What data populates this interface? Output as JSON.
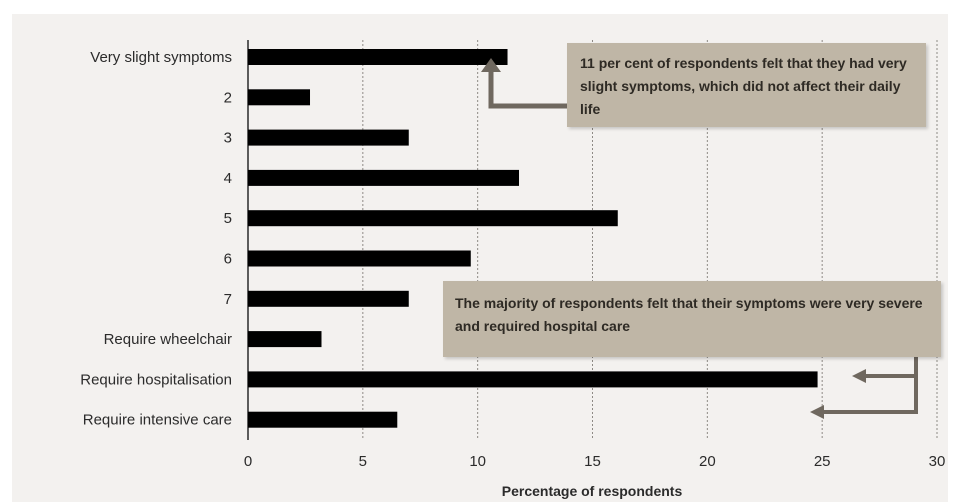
{
  "chart_data": {
    "type": "bar",
    "orientation": "horizontal",
    "categories": [
      "Very slight symptoms",
      "2",
      "3",
      "4",
      "5",
      "6",
      "7",
      "Require wheelchair",
      "Require hospitalisation",
      "Require intensive care"
    ],
    "values": [
      11.3,
      2.7,
      7.0,
      11.8,
      16.1,
      9.7,
      7.0,
      3.2,
      24.8,
      6.5
    ],
    "xlabel": "Percentage of respondents",
    "xlim": [
      0,
      30
    ],
    "xticks": [
      "0",
      "5",
      "10",
      "15",
      "20",
      "25",
      "30"
    ],
    "grid": "vertical",
    "bar_color": "#000000",
    "annotations": [
      {
        "text": "11 per cent of respondents felt that they had very slight symptoms, which did not affect their daily life"
      },
      {
        "text": "The majority of respondents felt that their symptoms were very severe and required hospital care"
      }
    ]
  }
}
